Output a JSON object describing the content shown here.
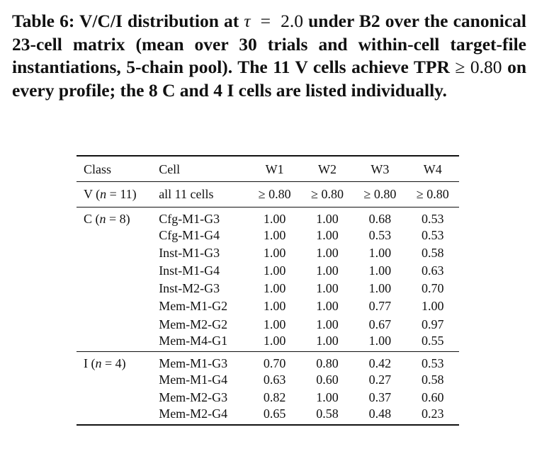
{
  "caption": {
    "label": "Table 6:",
    "text_a": "V/C/I distribution at",
    "tau_symbol": "τ",
    "tau_eq": "=",
    "tau_value": "2.0",
    "text_b": "under B2 over the canonical 23-cell matrix (mean over 30 trials and within-cell target-file instantiations, 5-chain pool). The 11 V cells achieve TPR",
    "ge_threshold": "≥ 0.80",
    "text_c": "on every profile; the 8 C and 4 I cells are listed individually."
  },
  "table": {
    "headers": [
      "Class",
      "Cell",
      "W1",
      "W2",
      "W3",
      "W4"
    ],
    "v_group": {
      "class_prefix": "V (",
      "n_var": "n",
      "class_suffix": " = 11)",
      "cell": "all 11 cells",
      "values": [
        "≥ 0.80",
        "≥ 0.80",
        "≥ 0.80",
        "≥ 0.80"
      ]
    },
    "c_group": {
      "class_prefix": "C (",
      "n_var": "n",
      "class_suffix": " = 8)",
      "rows": [
        {
          "cell": "Cfg-M1-G3",
          "values": [
            "1.00",
            "1.00",
            "0.68",
            "0.53"
          ]
        },
        {
          "cell": "Cfg-M1-G4",
          "values": [
            "1.00",
            "1.00",
            "0.53",
            "0.53"
          ]
        },
        {
          "cell": "Inst-M1-G3",
          "values": [
            "1.00",
            "1.00",
            "1.00",
            "0.58"
          ]
        },
        {
          "cell": "Inst-M1-G4",
          "values": [
            "1.00",
            "1.00",
            "1.00",
            "0.63"
          ]
        },
        {
          "cell": "Inst-M2-G3",
          "values": [
            "1.00",
            "1.00",
            "1.00",
            "0.70"
          ]
        },
        {
          "cell": "Mem-M1-G2",
          "values": [
            "1.00",
            "1.00",
            "0.77",
            "1.00"
          ]
        },
        {
          "cell": "Mem-M2-G2",
          "values": [
            "1.00",
            "1.00",
            "0.67",
            "0.97"
          ]
        },
        {
          "cell": "Mem-M4-G1",
          "values": [
            "1.00",
            "1.00",
            "1.00",
            "0.55"
          ]
        }
      ]
    },
    "i_group": {
      "class_prefix": "I (",
      "n_var": "n",
      "class_suffix": " = 4)",
      "rows": [
        {
          "cell": "Mem-M1-G3",
          "values": [
            "0.70",
            "0.80",
            "0.42",
            "0.53"
          ]
        },
        {
          "cell": "Mem-M1-G4",
          "values": [
            "0.63",
            "0.60",
            "0.27",
            "0.58"
          ]
        },
        {
          "cell": "Mem-M2-G3",
          "values": [
            "0.82",
            "1.00",
            "0.37",
            "0.60"
          ]
        },
        {
          "cell": "Mem-M2-G4",
          "values": [
            "0.65",
            "0.58",
            "0.48",
            "0.23"
          ]
        }
      ]
    }
  }
}
